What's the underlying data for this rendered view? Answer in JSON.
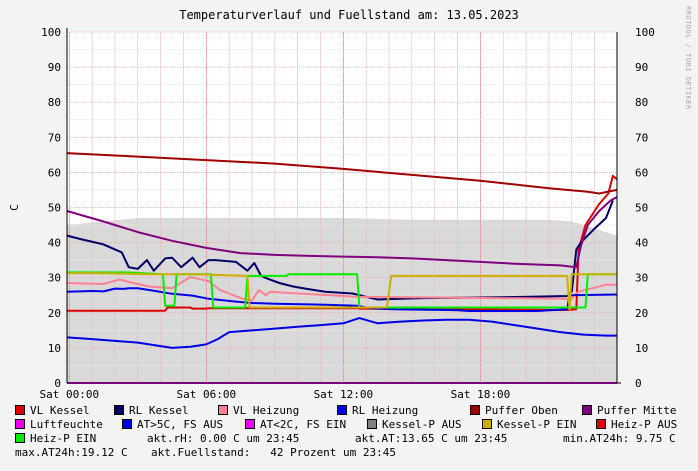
{
  "header": {
    "title": "Temperaturverlauf und Fuellstand am: 13.05.2023",
    "watermark": "RRDTOOL / TOBI OETIKER"
  },
  "chart_data": {
    "type": "line",
    "ylabel": "C",
    "ylim": [
      0,
      100
    ],
    "yticks": [
      0,
      10,
      20,
      30,
      40,
      50,
      60,
      70,
      80,
      90,
      100
    ],
    "xlim": [
      -0.1,
      23.98
    ],
    "xticks": [
      {
        "value": 0,
        "label": "Sat 00:00"
      },
      {
        "value": 6,
        "label": "Sat 06:00"
      },
      {
        "value": 12,
        "label": "Sat 12:00"
      },
      {
        "value": 18,
        "label": "Sat 18:00"
      }
    ],
    "area": {
      "name": "Fuellstand",
      "color": "#d9d9d9",
      "x": [
        -0.1,
        1.5,
        3,
        6,
        9,
        12,
        15,
        18,
        21,
        22,
        22.5,
        23,
        23.5,
        23.98
      ],
      "y": [
        45,
        46,
        47,
        47,
        47,
        47,
        46.5,
        46.5,
        46.5,
        46,
        45,
        44,
        43,
        42
      ]
    },
    "series": [
      {
        "name": "VL Kessel",
        "color": "#e00000",
        "x": [
          -0.1,
          4.2,
          4.3,
          5.3,
          5.4,
          6.0,
          6.1,
          8.0,
          12.6,
          12.7,
          17.0,
          21.8,
          22.2,
          22.3,
          22.6,
          23.2,
          23.6,
          23.8,
          23.98
        ],
        "y": [
          20.6,
          20.6,
          21.5,
          21.5,
          21.2,
          21.2,
          21.3,
          21.3,
          21.3,
          21.2,
          21.0,
          20.8,
          21.0,
          38,
          45,
          51,
          54,
          59,
          58
        ]
      },
      {
        "name": "RL Kessel",
        "color": "#000066",
        "x": [
          -0.1,
          0.5,
          1.5,
          2.3,
          2.6,
          3.0,
          3.4,
          3.7,
          4.2,
          4.5,
          4.9,
          5.4,
          5.7,
          6.1,
          6.4,
          7.3,
          7.8,
          8.1,
          8.4,
          8.7,
          9.2,
          9.8,
          10.4,
          11.2,
          12.4,
          13.5,
          14.5,
          15.5,
          18.5,
          21.8,
          22.0,
          22.2,
          22.4,
          23.0,
          23.5,
          23.8
        ],
        "y": [
          42,
          41,
          39.5,
          37.2,
          33,
          32.5,
          35,
          32,
          35.5,
          35.7,
          33,
          35.7,
          33,
          35,
          35,
          34.5,
          32,
          34.2,
          30.5,
          29.7,
          28.5,
          27.5,
          26.8,
          26,
          25.5,
          23.8,
          24,
          24.2,
          24.4,
          24.8,
          26,
          38,
          40,
          44,
          47,
          52
        ]
      },
      {
        "name": "VL Heizung",
        "color": "#ff8090",
        "x": [
          -0.1,
          1.5,
          2.2,
          2.8,
          3.5,
          4.5,
          5.3,
          6.1,
          6.6,
          7.2,
          7.6,
          8.0,
          8.3,
          8.6,
          8.8,
          10.0,
          11.5,
          12.5,
          22.0,
          22.1,
          22.3,
          23.5,
          23.98
        ],
        "y": [
          28.5,
          28.2,
          29.5,
          28.5,
          27.5,
          27,
          30.2,
          29,
          26.5,
          25,
          24,
          23.5,
          26.5,
          25,
          26,
          25.5,
          25,
          24.6,
          24,
          25,
          26,
          28,
          28
        ]
      },
      {
        "name": "RL Heizung",
        "color": "#0000e6",
        "x": [
          -0.1,
          1.0,
          1.5,
          2.0,
          2.4,
          2.6,
          3.0,
          3.5,
          4.5,
          5.4,
          6.1,
          7.3,
          8.0,
          9.0,
          10.5,
          11.2,
          12.6,
          13.0,
          13.5,
          14.2,
          16.5,
          17.0,
          17.5,
          19.0,
          20.5,
          21.8,
          21.9,
          23.98
        ],
        "y": [
          26.0,
          26.2,
          26.1,
          26.9,
          26.8,
          27.0,
          27.0,
          26.5,
          25.4,
          24.9,
          24.0,
          23.2,
          22.8,
          22.6,
          22.4,
          22.3,
          22.0,
          21.5,
          21.2,
          21.0,
          20.8,
          20.7,
          20.5,
          20.5,
          20.5,
          21,
          25,
          25.2
        ]
      },
      {
        "name": "Puffer Oben",
        "color": "#a00000",
        "x": [
          -0.1,
          3.0,
          6.0,
          9.0,
          12.0,
          15.0,
          18.0,
          21.0,
          22.7,
          23.2,
          23.98
        ],
        "y": [
          65.5,
          64.5,
          63.5,
          62.5,
          61.0,
          59.3,
          57.6,
          55.5,
          54.5,
          54.0,
          55.0
        ]
      },
      {
        "name": "Puffer Mitte",
        "color": "#800080",
        "x": [
          -0.1,
          1.5,
          3.0,
          4.5,
          6.0,
          7.5,
          9.0,
          10.5,
          12.0,
          13.5,
          15.0,
          16.5,
          18.0,
          19.5,
          21.5,
          22.2,
          22.4,
          22.7,
          23.2,
          23.7,
          23.98
        ],
        "y": [
          49,
          46,
          43,
          40.5,
          38.5,
          37,
          36.5,
          36.2,
          36,
          35.8,
          35.5,
          35,
          34.5,
          34,
          33.5,
          33,
          39,
          45,
          49,
          52,
          53
        ]
      },
      {
        "name": "AT>5C, FS AUS",
        "color": "#0000e6",
        "x": [
          -0.1,
          1.0,
          2.0,
          3.0,
          4.5,
          5.3,
          6.0,
          6.5,
          7.0,
          8.0,
          9.0,
          10.0,
          11.0,
          12.0,
          12.7,
          13.5,
          14.5,
          15.5,
          16.5,
          17.5,
          18.5,
          19.5,
          20.5,
          21.5,
          22.5,
          23.5,
          23.98
        ],
        "y": [
          13,
          12.5,
          12,
          11.5,
          10,
          10.3,
          11,
          12.5,
          14.5,
          15,
          15.5,
          16,
          16.5,
          17,
          18.5,
          17,
          17.5,
          17.8,
          18,
          18,
          17.5,
          16.5,
          15.5,
          14.5,
          13.8,
          13.5,
          13.5
        ]
      },
      {
        "name": "Heiz-P EIN",
        "color": "#00ee00",
        "x": [
          -0.1,
          2.5,
          4.1,
          4.2,
          4.6,
          4.7,
          6.2,
          6.3,
          7.7,
          7.8,
          9.5,
          9.6,
          12.6,
          12.7,
          22.6,
          22.7,
          23.98
        ],
        "y": [
          31.5,
          31.5,
          31,
          22,
          22,
          31,
          31,
          21.5,
          21.5,
          30.5,
          30.5,
          31,
          31,
          21.5,
          21.5,
          31,
          31
        ]
      },
      {
        "name": "Kessel-P EIN",
        "color": "#ccb000",
        "x": [
          -0.1,
          1.0,
          3.5,
          5.5,
          7.8,
          7.9,
          10.0,
          13.9,
          14.0,
          14.1,
          18.0,
          21.8,
          21.9,
          22.0,
          23.98
        ],
        "y": [
          31.3,
          31.3,
          31,
          31,
          30.5,
          21.5,
          21.5,
          21.5,
          26,
          30.5,
          30.5,
          30.5,
          21,
          31,
          31
        ]
      },
      {
        "name": "Luftfeuchte",
        "color": "#ee00ee",
        "x": [
          -0.1,
          23.98
        ],
        "y": [
          0.0,
          0.0
        ]
      }
    ]
  },
  "legend": [
    {
      "label": "VL Kessel",
      "color": "#e00000"
    },
    {
      "label": "RL Kessel",
      "color": "#000066"
    },
    {
      "label": "VL Heizung",
      "color": "#ff8090"
    },
    {
      "label": "RL Heizung",
      "color": "#0000e6"
    },
    {
      "label": "Puffer Oben",
      "color": "#a00000"
    },
    {
      "label": "Puffer Mitte",
      "color": "#800080"
    },
    {
      "label": "Luftfeuchte",
      "color": "#ee00ee"
    },
    {
      "label": "AT>5C, FS AUS",
      "color": "#0000e6"
    },
    {
      "label": "AT<2C, FS EIN",
      "color": "#ee00ee"
    },
    {
      "label": "Kessel-P AUS",
      "color": "#808080"
    },
    {
      "label": "Kessel-P EIN",
      "color": "#ccb000"
    },
    {
      "label": "Heiz-P AUS",
      "color": "#e00000"
    },
    {
      "label": "Heiz-P EIN",
      "color": "#00ee00"
    }
  ],
  "info": {
    "rh": "akt.rH: 0.00 C um 23:45",
    "at": "akt.AT:13.65 C um 23:45",
    "min": "min.AT24h: 9.75 C",
    "max": "max.AT24h:19.12 C",
    "fill": "akt.Fuellstand:   42 Prozent um 23:45"
  }
}
